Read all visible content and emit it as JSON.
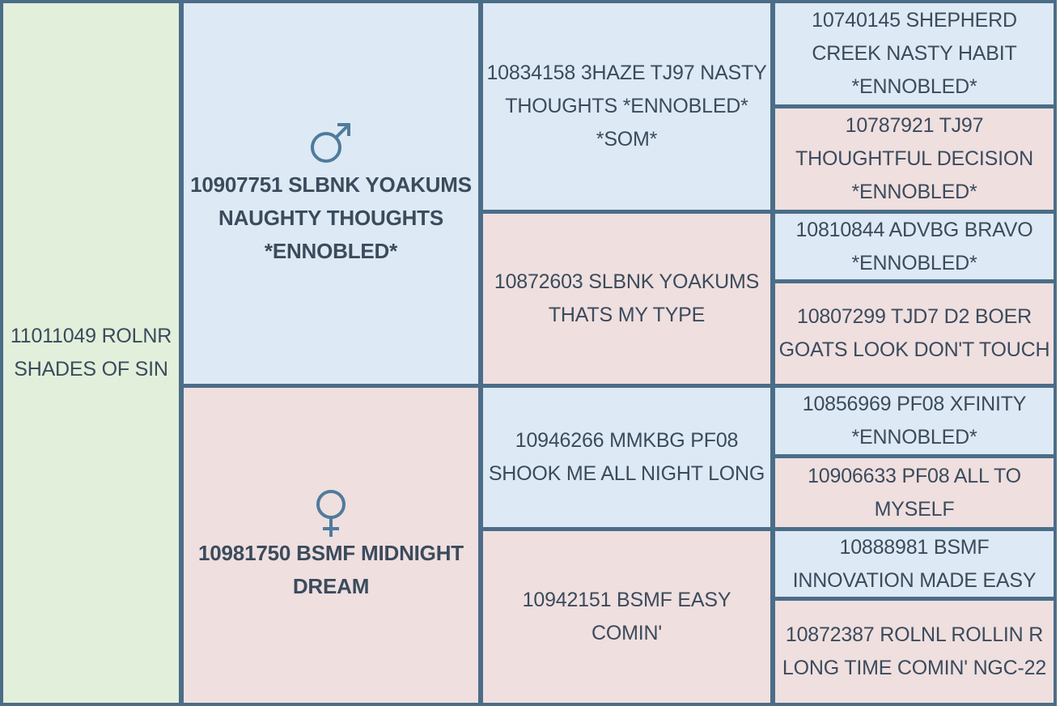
{
  "subject": "11011049 ROLNR SHADES OF SIN",
  "sire": {
    "name": "10907751 SLBNK YOAKUMS NAUGHTY THOUGHTS *ENNOBLED*",
    "sire": {
      "name": "10834158 3HAZE TJ97 NASTY THOUGHTS *ENNOBLED* *SOM*",
      "sire": "10740145 SHEPHERD CREEK NASTY HABIT *ENNOBLED*",
      "dam": "10787921 TJ97 THOUGHTFUL DECISION *ENNOBLED*"
    },
    "dam": {
      "name": "10872603 SLBNK YOAKUMS THATS MY TYPE",
      "sire": "10810844 ADVBG BRAVO *ENNOBLED*",
      "dam": "10807299 TJD7 D2 BOER GOATS LOOK DON'T TOUCH"
    }
  },
  "dam": {
    "name": "10981750 BSMF MIDNIGHT DREAM",
    "sire": {
      "name": "10946266 MMKBG PF08 SHOOK ME ALL NIGHT LONG",
      "sire": "10856969 PF08 XFINITY *ENNOBLED*",
      "dam": "10906633 PF08 ALL TO MYSELF"
    },
    "dam": {
      "name": "10942151 BSMF EASY COMIN'",
      "sire": "10888981 BSMF INNOVATION MADE EASY",
      "dam": "10872387 ROLNL ROLLIN R LONG TIME COMIN' NGC-22"
    }
  }
}
